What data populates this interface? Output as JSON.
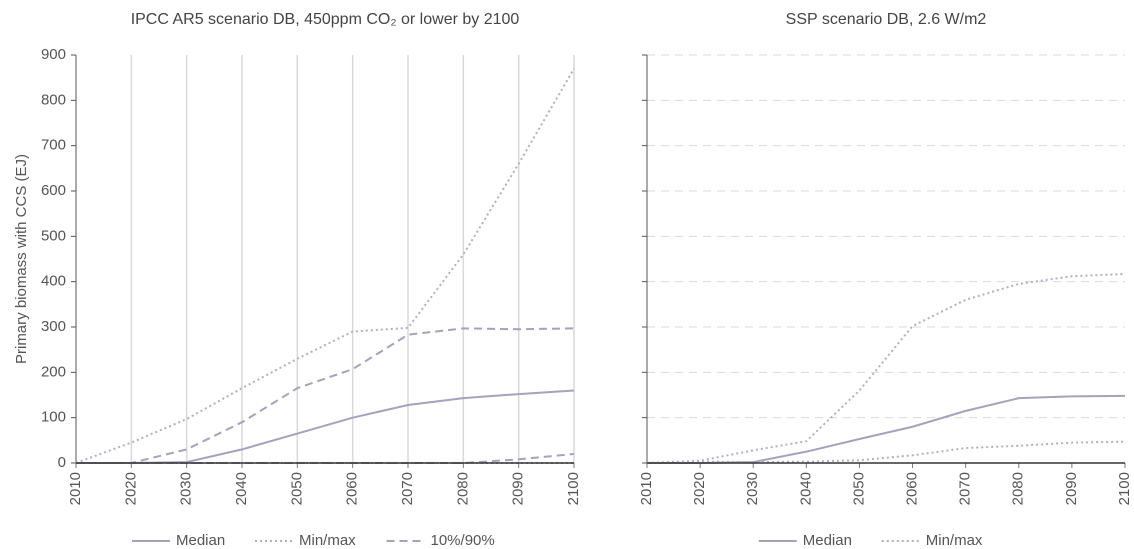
{
  "chart_data": [
    {
      "type": "line",
      "title": "IPCC AR5 scenario DB, 450ppm CO₂ or lower by 2100",
      "y_label": "Primary biomass with CCS (EJ)",
      "x": [
        2010,
        2020,
        2030,
        2040,
        2050,
        2060,
        2070,
        2080,
        2090,
        2100
      ],
      "xlim": [
        2010,
        2100
      ],
      "xticks": [
        2010,
        2020,
        2030,
        2040,
        2050,
        2060,
        2070,
        2080,
        2090,
        2100
      ],
      "ylim": [
        0,
        900
      ],
      "yticks": [
        0,
        100,
        200,
        300,
        400,
        500,
        600,
        700,
        800,
        900
      ],
      "grid": "x",
      "show_ytick_labels": true,
      "series": [
        {
          "name": "Median",
          "color": "#a7a1bb",
          "dash": "solid",
          "values": [
            0,
            0,
            2,
            30,
            65,
            100,
            128,
            143,
            152,
            160
          ]
        },
        {
          "name": "Min/max",
          "color": "#b3aec6",
          "dash": "dotted",
          "values": [
            0,
            45,
            97,
            165,
            230,
            290,
            298,
            460,
            660,
            870
          ],
          "lower_values": [
            0,
            0,
            0,
            0,
            0,
            0,
            0,
            0,
            0,
            0
          ]
        },
        {
          "name": "10%/90%",
          "color": "#a7a1bb",
          "dash": "dashed",
          "values": [
            0,
            0,
            30,
            90,
            165,
            207,
            283,
            297,
            295,
            297
          ],
          "lower_values": [
            0,
            0,
            0,
            0,
            0,
            0,
            0,
            0,
            8,
            20
          ]
        }
      ]
    },
    {
      "type": "line",
      "title": "SSP scenario DB, 2.6 W/m2",
      "x": [
        2010,
        2020,
        2030,
        2040,
        2050,
        2060,
        2070,
        2080,
        2090,
        2100
      ],
      "xlim": [
        2010,
        2100
      ],
      "xticks": [
        2010,
        2020,
        2030,
        2040,
        2050,
        2060,
        2070,
        2080,
        2090,
        2100
      ],
      "ylim": [
        0,
        900
      ],
      "yticks": [
        0,
        100,
        200,
        300,
        400,
        500,
        600,
        700,
        800,
        900
      ],
      "grid": "y",
      "show_ytick_labels": false,
      "series": [
        {
          "name": "Median",
          "color": "#a7a1bb",
          "dash": "solid",
          "values": [
            0,
            0,
            2,
            25,
            53,
            80,
            115,
            143,
            147,
            148
          ]
        },
        {
          "name": "Min/max",
          "color": "#b3aec6",
          "dash": "dotted",
          "values": [
            0,
            5,
            28,
            48,
            160,
            302,
            360,
            395,
            412,
            417
          ],
          "lower_values": [
            0,
            3,
            2,
            3,
            6,
            17,
            33,
            38,
            45,
            47
          ]
        }
      ]
    }
  ]
}
